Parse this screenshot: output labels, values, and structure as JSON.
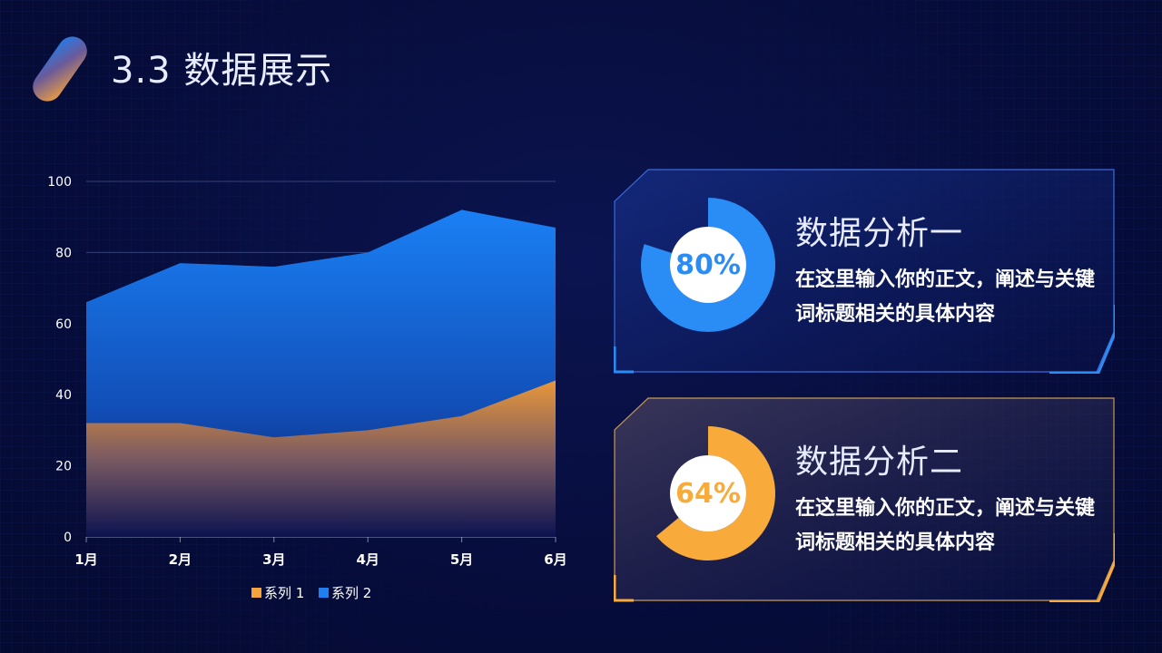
{
  "slide": {
    "title": "3.3 数据展示"
  },
  "chart_data": {
    "type": "area",
    "categories": [
      "1月",
      "2月",
      "3月",
      "4月",
      "5月",
      "6月"
    ],
    "series": [
      {
        "name": "系列 1",
        "values": [
          32,
          32,
          28,
          30,
          34,
          44
        ],
        "color": "#f5a33a"
      },
      {
        "name": "系列 2",
        "values": [
          66,
          77,
          76,
          80,
          92,
          87
        ],
        "color": "#1f7ff0"
      }
    ],
    "ylim": [
      0,
      100
    ],
    "yticks": [
      0,
      20,
      40,
      60,
      80,
      100
    ],
    "grid": true,
    "legend": "bottom"
  },
  "cards": [
    {
      "heading": "数据分析一",
      "body": "在这里输入你的正文，阐述与关键词标题相关的具体内容",
      "percent_label": "80%",
      "percent": 80,
      "accent": "#2a8cf5"
    },
    {
      "heading": "数据分析二",
      "body": "在这里输入你的正文，阐述与关键词标题相关的具体内容",
      "percent_label": "64%",
      "percent": 64,
      "accent": "#f8ab3a"
    }
  ]
}
